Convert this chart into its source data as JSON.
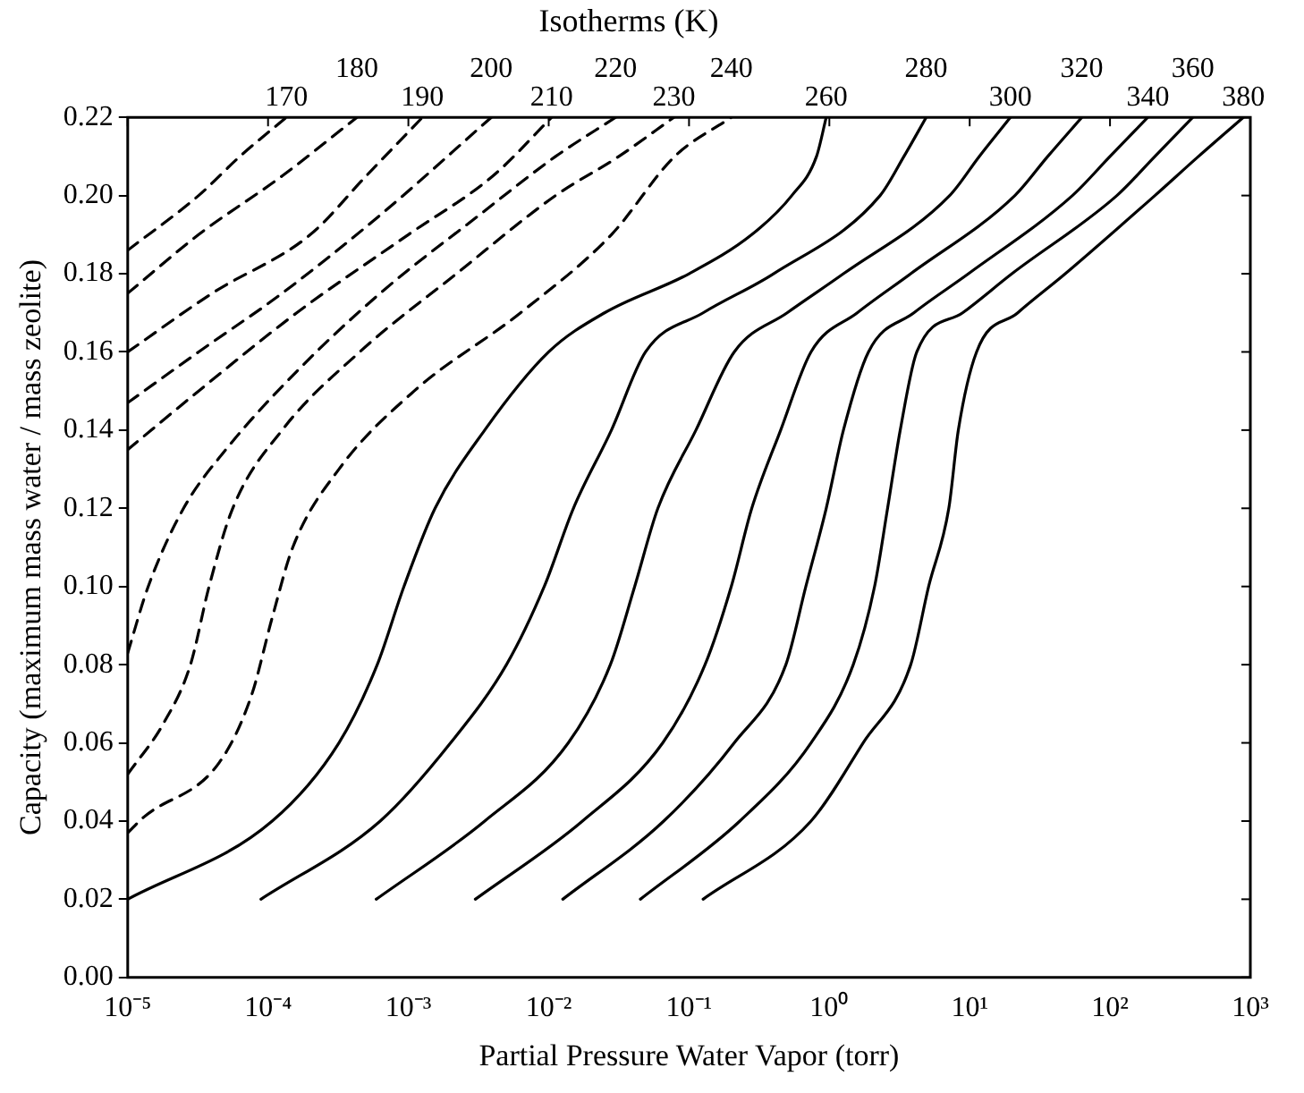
{
  "chart_data": {
    "type": "line",
    "title": "Isotherms (K)",
    "xlabel": "Partial Pressure Water Vapor (torr)",
    "ylabel": "Capacity (maximum mass water / mass zeolite)",
    "log": "x",
    "legend": false,
    "marker": "none",
    "xlim": [
      1e-05,
      1000
    ],
    "xticks": [
      {
        "value": 1e-05,
        "label": "10⁻⁵"
      },
      {
        "value": 0.0001,
        "label": "10⁻⁴"
      },
      {
        "value": 0.001,
        "label": "10⁻³"
      },
      {
        "value": 0.01,
        "label": "10⁻²"
      },
      {
        "value": 0.1,
        "label": "10⁻¹"
      },
      {
        "value": 1,
        "label": "10⁰"
      },
      {
        "value": 10,
        "label": "10¹"
      },
      {
        "value": 100,
        "label": "10²"
      },
      {
        "value": 1000,
        "label": "10³"
      }
    ],
    "ylim": [
      0,
      0.22
    ],
    "yticks": [
      {
        "value": 0,
        "label": "0.00"
      },
      {
        "value": 0.02,
        "label": "0.02"
      },
      {
        "value": 0.04,
        "label": "0.04"
      },
      {
        "value": 0.06,
        "label": "0.06"
      },
      {
        "value": 0.08,
        "label": "0.08"
      },
      {
        "value": 0.1,
        "label": "0.10"
      },
      {
        "value": 0.12,
        "label": "0.12"
      },
      {
        "value": 0.14,
        "label": "0.14"
      },
      {
        "value": 0.16,
        "label": "0.16"
      },
      {
        "value": 0.18,
        "label": "0.18"
      },
      {
        "value": 0.2,
        "label": "0.20"
      },
      {
        "value": 0.22,
        "label": "0.22"
      }
    ],
    "series": [
      {
        "name": "170",
        "color": "#000000",
        "line_style": "dashed",
        "x": [
          1e-05,
          3.2e-05,
          6.3e-05,
          0.000135
        ],
        "values": [
          0.186,
          0.2,
          0.21,
          0.22
        ]
      },
      {
        "name": "180",
        "color": "#000000",
        "line_style": "dashed",
        "x": [
          1e-05,
          3.2e-05,
          0.000126,
          0.00043
        ],
        "values": [
          0.175,
          0.19,
          0.205,
          0.22
        ]
      },
      {
        "name": "190",
        "color": "#000000",
        "line_style": "dashed",
        "x": [
          1e-05,
          4e-05,
          0.0002,
          0.0005,
          0.00126
        ],
        "values": [
          0.16,
          0.175,
          0.19,
          0.205,
          0.22
        ]
      },
      {
        "name": "200",
        "color": "#000000",
        "line_style": "dashed",
        "x": [
          1e-05,
          3.2e-05,
          0.000126,
          0.00063,
          0.0039
        ],
        "values": [
          0.147,
          0.16,
          0.175,
          0.195,
          0.22
        ]
      },
      {
        "name": "210",
        "color": "#000000",
        "line_style": "dashed",
        "x": [
          1e-05,
          3.2e-05,
          0.00016,
          0.001,
          0.004,
          0.0105
        ],
        "values": [
          0.135,
          0.15,
          0.17,
          0.19,
          0.205,
          0.22
        ]
      },
      {
        "name": "220",
        "color": "#000000",
        "line_style": "dashed",
        "x": [
          1e-05,
          1.4e-05,
          2.5e-05,
          5e-05,
          0.00016,
          0.00063,
          0.0032,
          0.0112,
          0.03
        ],
        "values": [
          0.083,
          0.1,
          0.12,
          0.135,
          0.155,
          0.175,
          0.195,
          0.21,
          0.22
        ]
      },
      {
        "name": "230",
        "color": "#000000",
        "line_style": "dashed",
        "x": [
          1e-05,
          1.8e-05,
          2.8e-05,
          3.8e-05,
          5.6e-05,
          0.000126,
          0.00045,
          0.0022,
          0.0112,
          0.0316,
          0.078
        ],
        "values": [
          0.052,
          0.065,
          0.08,
          0.1,
          0.12,
          0.14,
          0.16,
          0.18,
          0.2,
          0.21,
          0.22
        ]
      },
      {
        "name": "240",
        "color": "#000000",
        "line_style": "dashed",
        "x": [
          1e-05,
          1.3e-05,
          4.5e-05,
          7.6e-05,
          0.000107,
          0.00015,
          0.00032,
          0.0011,
          0.0063,
          0.028,
          0.079,
          0.2
        ],
        "values": [
          0.037,
          0.041,
          0.055,
          0.072,
          0.092,
          0.11,
          0.13,
          0.15,
          0.17,
          0.19,
          0.21,
          0.22
        ]
      },
      {
        "name": "260",
        "color": "#000000",
        "line_style": "solid",
        "x": [
          1e-05,
          0.000107,
          0.00032,
          0.0006,
          0.00093,
          0.00155,
          0.0035,
          0.01,
          0.025,
          0.1,
          0.28,
          0.54,
          0.81,
          0.95
        ],
        "values": [
          0.02,
          0.04,
          0.06,
          0.08,
          0.1,
          0.12,
          0.14,
          0.16,
          0.17,
          0.18,
          0.19,
          0.2,
          0.21,
          0.22
        ]
      },
      {
        "name": "280",
        "color": "#000000",
        "line_style": "solid",
        "x": [
          8.9e-05,
          0.00063,
          0.002,
          0.005,
          0.0093,
          0.015,
          0.028,
          0.049,
          0.126,
          0.4,
          2.3,
          3.4,
          4.9
        ],
        "values": [
          0.02,
          0.04,
          0.06,
          0.08,
          0.1,
          0.12,
          0.14,
          0.16,
          0.17,
          0.18,
          0.2,
          0.21,
          0.22
        ]
      },
      {
        "name": "300",
        "color": "#000000",
        "line_style": "solid",
        "x": [
          0.00059,
          0.0035,
          0.0138,
          0.0275,
          0.041,
          0.06,
          0.112,
          0.21,
          0.5,
          1.26,
          7.2,
          11.7,
          19.5
        ],
        "values": [
          0.02,
          0.04,
          0.06,
          0.08,
          0.1,
          0.12,
          0.14,
          0.16,
          0.17,
          0.18,
          0.2,
          0.21,
          0.22
        ]
      },
      {
        "name": "320",
        "color": "#000000",
        "line_style": "solid",
        "x": [
          0.003,
          0.0174,
          0.065,
          0.13,
          0.2,
          0.28,
          0.45,
          0.74,
          1.58,
          3.8,
          21,
          36,
          63
        ],
        "values": [
          0.02,
          0.04,
          0.06,
          0.08,
          0.1,
          0.12,
          0.14,
          0.16,
          0.17,
          0.18,
          0.2,
          0.21,
          0.22
        ]
      },
      {
        "name": "340",
        "color": "#000000",
        "line_style": "solid",
        "x": [
          0.0126,
          0.066,
          0.21,
          0.49,
          0.68,
          0.95,
          1.26,
          1.9,
          4,
          9.8,
          54,
          100,
          186
        ],
        "values": [
          0.02,
          0.04,
          0.06,
          0.08,
          0.1,
          0.12,
          0.14,
          0.16,
          0.17,
          0.18,
          0.2,
          0.21,
          0.22
        ]
      },
      {
        "name": "360",
        "color": "#000000",
        "line_style": "solid",
        "x": [
          0.045,
          0.23,
          0.74,
          1.48,
          2.1,
          2.6,
          3.2,
          4.2,
          8.9,
          20,
          112,
          209,
          389
        ],
        "values": [
          0.02,
          0.04,
          0.06,
          0.08,
          0.1,
          0.12,
          0.14,
          0.16,
          0.17,
          0.18,
          0.2,
          0.21,
          0.22
        ]
      },
      {
        "name": "380",
        "color": "#000000",
        "line_style": "solid",
        "x": [
          0.126,
          0.74,
          1.74,
          3.8,
          5.1,
          7.1,
          8.3,
          11.2,
          22,
          48,
          209,
          427,
          891
        ],
        "values": [
          0.02,
          0.04,
          0.06,
          0.08,
          0.1,
          0.12,
          0.14,
          0.16,
          0.17,
          0.18,
          0.2,
          0.21,
          0.22
        ]
      }
    ]
  }
}
